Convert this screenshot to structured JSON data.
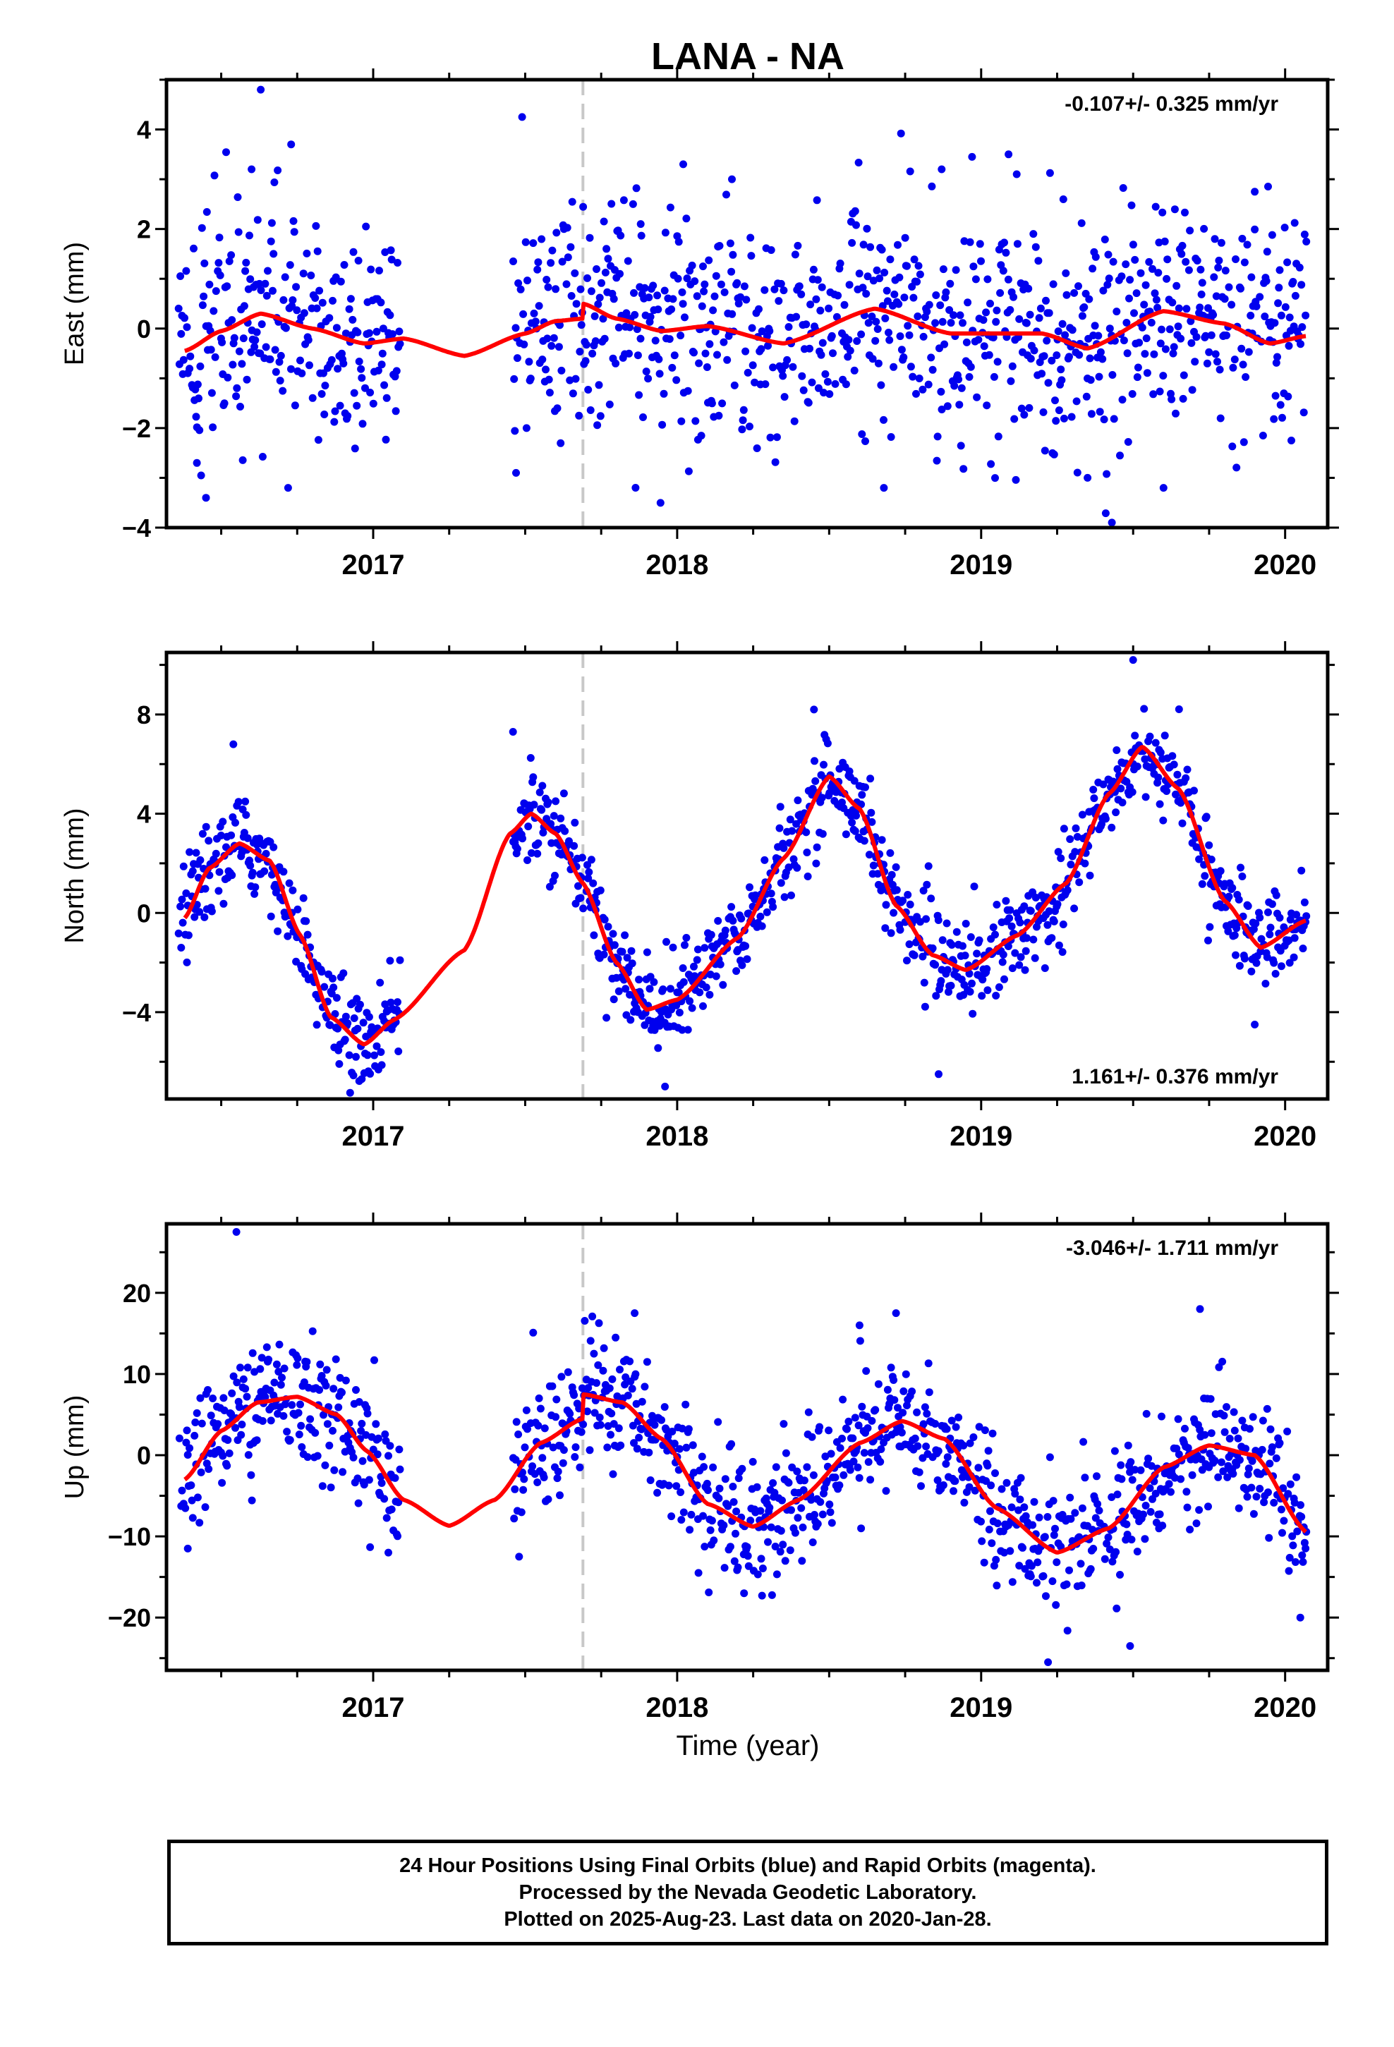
{
  "chart_data": {
    "type": "scatter",
    "title": "LANA - NA",
    "xlabel": "Time (year)",
    "xlim": [
      2016.32,
      2020.14
    ],
    "x_ticks": [
      2017,
      2018,
      2019,
      2020
    ],
    "x_tick_labels": [
      "2017",
      "2018",
      "2019",
      "2020"
    ],
    "equipment_change_line": 2017.69,
    "data_gap": [
      2017.09,
      2017.46
    ],
    "point_color": "#0000ee",
    "model_color": "#ff0000",
    "panels": [
      {
        "name": "East",
        "ylabel": "East (mm)",
        "ylim": [
          -4,
          5
        ],
        "y_ticks": [
          -4,
          -2,
          0,
          2,
          4
        ],
        "y_tick_labels": [
          "−4",
          "−2",
          "0",
          "2",
          "4"
        ],
        "rate_text": "-0.107+/- 0.325 mm/yr",
        "rate_position": "top-right",
        "noise_sd": 1.1,
        "model": [
          [
            2016.38,
            -0.45
          ],
          [
            2016.5,
            -0.05
          ],
          [
            2016.63,
            0.3
          ],
          [
            2016.8,
            0.0
          ],
          [
            2016.97,
            -0.3
          ],
          [
            2017.1,
            -0.2
          ],
          [
            2017.3,
            -0.55
          ],
          [
            2017.5,
            -0.1
          ],
          [
            2017.6,
            0.15
          ],
          [
            2017.69,
            0.2
          ],
          [
            2017.69,
            0.5
          ],
          [
            2017.8,
            0.2
          ],
          [
            2017.95,
            -0.05
          ],
          [
            2018.1,
            0.05
          ],
          [
            2018.35,
            -0.3
          ],
          [
            2018.65,
            0.4
          ],
          [
            2018.9,
            -0.1
          ],
          [
            2019.2,
            -0.1
          ],
          [
            2019.35,
            -0.4
          ],
          [
            2019.6,
            0.35
          ],
          [
            2019.8,
            0.1
          ],
          [
            2019.95,
            -0.3
          ],
          [
            2020.07,
            -0.15
          ]
        ],
        "outliers": [
          [
            2016.63,
            4.8
          ],
          [
            2016.73,
            3.7
          ],
          [
            2016.6,
            3.2
          ],
          [
            2016.45,
            -3.4
          ],
          [
            2016.42,
            -2.7
          ],
          [
            2016.72,
            -3.2
          ],
          [
            2017.49,
            4.25
          ],
          [
            2017.47,
            -2.9
          ],
          [
            2017.88,
            2.1
          ],
          [
            2018.02,
            3.3
          ],
          [
            2018.18,
            3.0
          ],
          [
            2018.68,
            -3.2
          ],
          [
            2018.87,
            3.2
          ],
          [
            2018.97,
            3.45
          ],
          [
            2019.09,
            3.5
          ],
          [
            2019.43,
            -3.9
          ],
          [
            2019.6,
            -3.2
          ],
          [
            2019.9,
            2.75
          ],
          [
            2019.35,
            -3.0
          ]
        ]
      },
      {
        "name": "North",
        "ylabel": "North (mm)",
        "ylim": [
          -7.5,
          10.5
        ],
        "y_ticks": [
          -4,
          0,
          4,
          8
        ],
        "y_tick_labels": [
          "−4",
          "0",
          "4",
          "8"
        ],
        "rate_text": "1.161+/- 0.376 mm/yr",
        "rate_position": "bottom-right",
        "noise_sd": 0.9,
        "model": [
          [
            2016.38,
            -0.2
          ],
          [
            2016.46,
            1.8
          ],
          [
            2016.56,
            2.8
          ],
          [
            2016.66,
            2.1
          ],
          [
            2016.76,
            -0.9
          ],
          [
            2016.86,
            -4.2
          ],
          [
            2016.97,
            -5.3
          ],
          [
            2017.07,
            -4.3
          ],
          [
            2017.3,
            -1.5
          ],
          [
            2017.45,
            3.2
          ],
          [
            2017.52,
            4.0
          ],
          [
            2017.6,
            3.2
          ],
          [
            2017.69,
            1.2
          ],
          [
            2017.8,
            -2.0
          ],
          [
            2017.9,
            -3.9
          ],
          [
            2018.0,
            -3.5
          ],
          [
            2018.2,
            -1.0
          ],
          [
            2018.35,
            2.2
          ],
          [
            2018.5,
            5.5
          ],
          [
            2018.6,
            4.2
          ],
          [
            2018.72,
            0.3
          ],
          [
            2018.84,
            -1.7
          ],
          [
            2018.95,
            -2.3
          ],
          [
            2019.12,
            -0.9
          ],
          [
            2019.28,
            1.2
          ],
          [
            2019.42,
            4.8
          ],
          [
            2019.53,
            6.7
          ],
          [
            2019.65,
            5.0
          ],
          [
            2019.8,
            0.5
          ],
          [
            2019.92,
            -1.4
          ],
          [
            2020.07,
            -0.3
          ]
        ],
        "outliers": [
          [
            2016.54,
            6.8
          ],
          [
            2017.46,
            7.3
          ],
          [
            2017.96,
            -7.0
          ],
          [
            2018.86,
            -6.5
          ],
          [
            2019.5,
            10.2
          ],
          [
            2019.9,
            -4.5
          ],
          [
            2018.45,
            8.2
          ]
        ]
      },
      {
        "name": "Up",
        "ylabel": "Up (mm)",
        "ylim": [
          -26.5,
          28.5
        ],
        "y_ticks": [
          -20,
          -10,
          0,
          10,
          20
        ],
        "y_tick_labels": [
          "−20",
          "−10",
          "0",
          "10",
          "20"
        ],
        "rate_text": "-3.046+/- 1.711 mm/yr",
        "rate_position": "top-right",
        "noise_sd": 3.8,
        "model": [
          [
            2016.38,
            -3.0
          ],
          [
            2016.5,
            3.0
          ],
          [
            2016.62,
            6.5
          ],
          [
            2016.75,
            7.2
          ],
          [
            2016.88,
            5.0
          ],
          [
            2016.98,
            0.5
          ],
          [
            2017.1,
            -5.5
          ],
          [
            2017.25,
            -8.7
          ],
          [
            2017.4,
            -5.5
          ],
          [
            2017.55,
            1.5
          ],
          [
            2017.69,
            4.5
          ],
          [
            2017.69,
            7.5
          ],
          [
            2017.82,
            6.5
          ],
          [
            2017.95,
            2.0
          ],
          [
            2018.1,
            -6.0
          ],
          [
            2018.25,
            -8.8
          ],
          [
            2018.4,
            -5.5
          ],
          [
            2018.6,
            1.5
          ],
          [
            2018.74,
            4.2
          ],
          [
            2018.88,
            2.0
          ],
          [
            2019.05,
            -6.5
          ],
          [
            2019.25,
            -12.0
          ],
          [
            2019.42,
            -9.0
          ],
          [
            2019.6,
            -1.5
          ],
          [
            2019.75,
            1.2
          ],
          [
            2019.9,
            0.0
          ],
          [
            2020.07,
            -9.5
          ]
        ],
        "outliers": [
          [
            2016.55,
            27.5
          ],
          [
            2016.39,
            -11.5
          ],
          [
            2017.05,
            -12.0
          ],
          [
            2017.48,
            -12.5
          ],
          [
            2017.86,
            17.5
          ],
          [
            2018.07,
            -14.5
          ],
          [
            2018.22,
            -17.0
          ],
          [
            2018.6,
            16.0
          ],
          [
            2018.72,
            17.5
          ],
          [
            2019.22,
            -25.5
          ],
          [
            2019.49,
            -23.5
          ],
          [
            2019.72,
            18.0
          ],
          [
            2020.05,
            -20.0
          ]
        ]
      }
    ]
  },
  "footer": {
    "line1": "24 Hour Positions Using Final Orbits (blue) and Rapid Orbits (magenta).",
    "line2": "Processed by the Nevada Geodetic Laboratory.",
    "line3": "Plotted on 2025-Aug-23. Last data on 2020-Jan-28."
  }
}
